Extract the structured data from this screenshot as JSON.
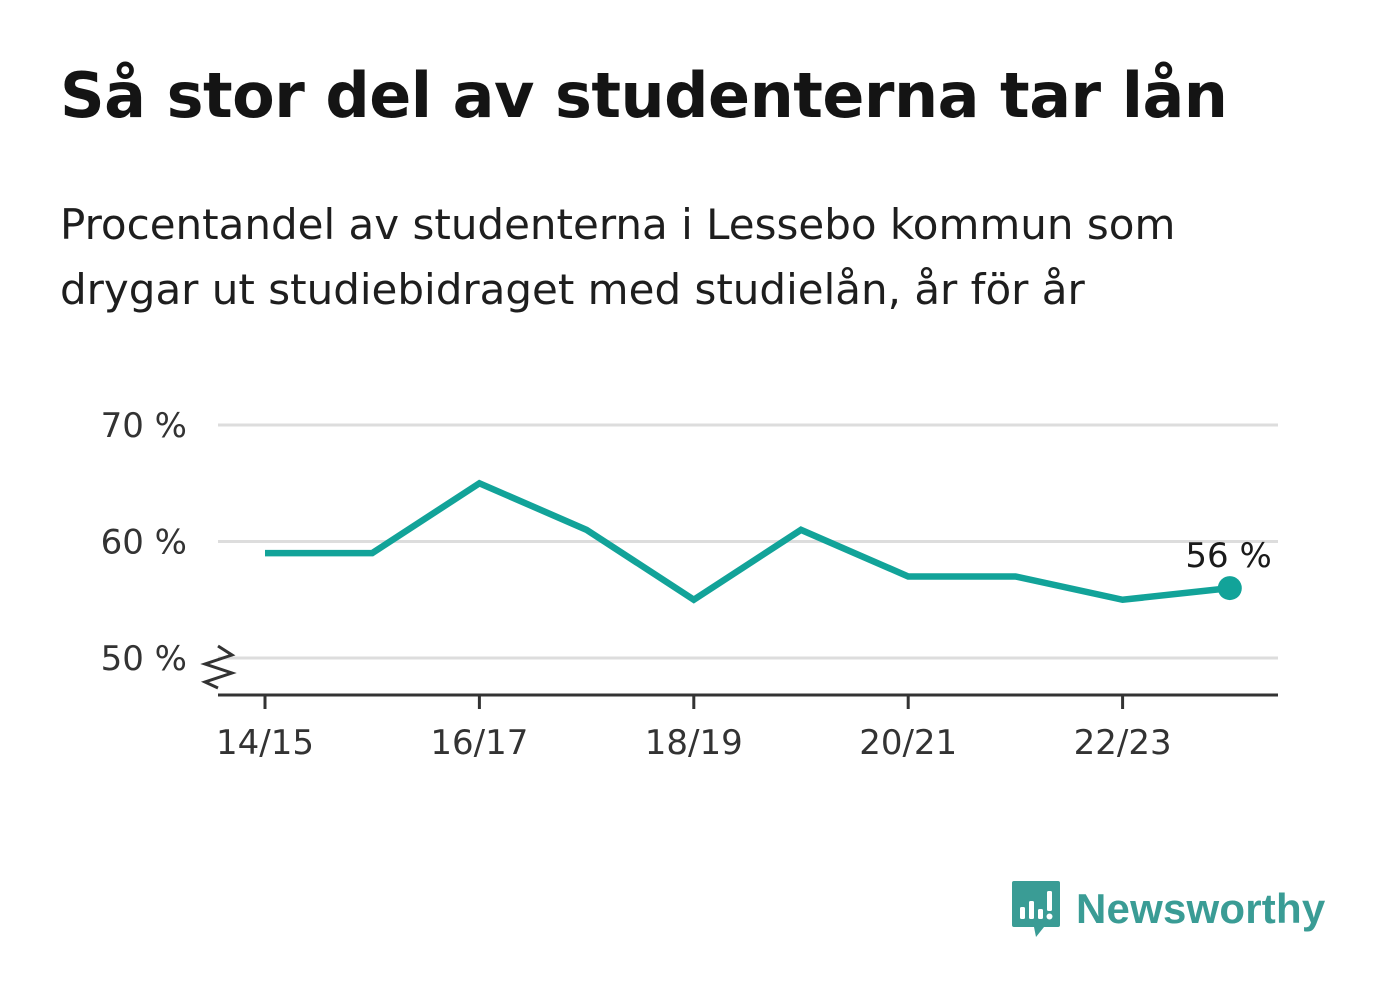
{
  "header": {
    "title": "Så stor del av studenterna tar lån",
    "subtitle": "Procentandel av studenterna i Lessebo kommun som drygar ut studiebidraget med studielån, år för år"
  },
  "brand": {
    "name": "Newsworthy",
    "icon": "newsworthy-logo-icon",
    "color": "#3a9c95"
  },
  "chart_data": {
    "type": "line",
    "x": [
      "14/15",
      "15/16",
      "16/17",
      "17/18",
      "18/19",
      "19/20",
      "20/21",
      "21/22",
      "22/23",
      "23/24"
    ],
    "x_tick_labels": [
      "14/15",
      "16/17",
      "18/19",
      "20/21",
      "22/23"
    ],
    "series": [
      {
        "values": [
          59,
          59,
          65,
          61,
          55,
          61,
          57,
          57,
          55,
          56
        ],
        "color": "#12a399"
      }
    ],
    "y_ticks": [
      50,
      60,
      70
    ],
    "y_tick_labels": [
      "50 %",
      "60 %",
      "70 %"
    ],
    "ylim": [
      47,
      70
    ],
    "y_axis_break": true,
    "grid": true,
    "last_point_label": "56 %"
  }
}
